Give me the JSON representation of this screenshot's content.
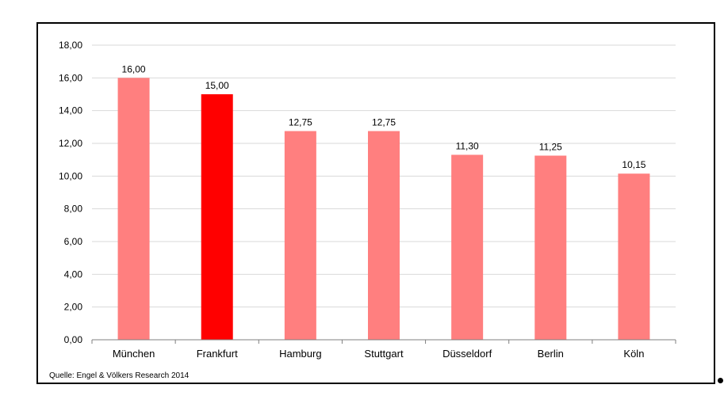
{
  "chart_data": {
    "type": "bar",
    "title": "",
    "xlabel": "",
    "ylabel": "",
    "categories": [
      "München",
      "Frankfurt",
      "Hamburg",
      "Stuttgart",
      "Düsseldorf",
      "Berlin",
      "Köln"
    ],
    "values": [
      16.0,
      15.0,
      12.75,
      12.75,
      11.3,
      11.25,
      10.15
    ],
    "value_labels": [
      "16,00",
      "15,00",
      "12,75",
      "12,75",
      "11,30",
      "11,25",
      "10,15"
    ],
    "ylim": [
      0,
      18
    ],
    "yticks": [
      0,
      2,
      4,
      6,
      8,
      10,
      12,
      14,
      16,
      18
    ],
    "ytick_labels": [
      "0,00",
      "2,00",
      "4,00",
      "6,00",
      "8,00",
      "10,00",
      "12,00",
      "14,00",
      "16,00",
      "18,00"
    ],
    "bar_colors": [
      "#ff7f7f",
      "#ff0000",
      "#ff7f7f",
      "#ff7f7f",
      "#ff7f7f",
      "#ff7f7f",
      "#ff7f7f"
    ],
    "highlighted_category": "Frankfurt",
    "grid": true,
    "grid_color": "#d9d9d9",
    "legend": "none"
  },
  "source": "Quelle: Engel & Völkers Research 2014"
}
